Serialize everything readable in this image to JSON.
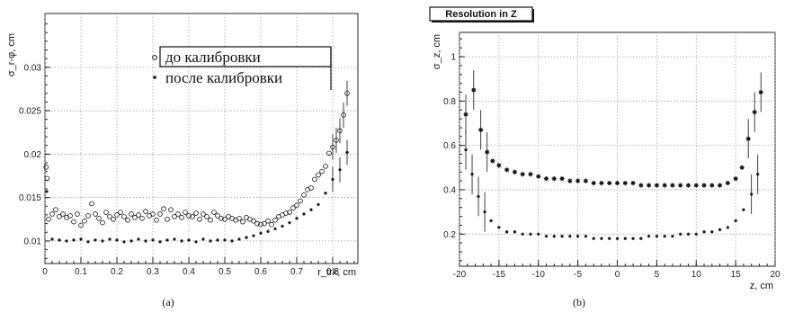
{
  "chart_data": [
    {
      "type": "scatter",
      "title": "",
      "xlabel": "r_trk, cm",
      "ylabel": "σ_r-φ, cm",
      "xlim": [
        0,
        0.87
      ],
      "ylim": [
        0.0074,
        0.0362
      ],
      "xticks": [
        "0",
        "0.1",
        "0.2",
        "0.3",
        "0.4",
        "0.5",
        "0.6",
        "0.7",
        "0.8"
      ],
      "yticks": [
        "0.01",
        "0.015",
        "0.02",
        "0.025",
        "0.03"
      ],
      "grid": true,
      "legend_position": "top-right",
      "caption": "(a)",
      "series": [
        {
          "name": "до калибровки",
          "marker": "circle",
          "x": [
            0.003,
            0.006,
            0.01,
            0.02,
            0.03,
            0.04,
            0.05,
            0.06,
            0.07,
            0.08,
            0.09,
            0.1,
            0.11,
            0.12,
            0.13,
            0.14,
            0.15,
            0.16,
            0.17,
            0.18,
            0.19,
            0.2,
            0.21,
            0.22,
            0.23,
            0.24,
            0.25,
            0.26,
            0.27,
            0.28,
            0.29,
            0.3,
            0.31,
            0.32,
            0.33,
            0.34,
            0.35,
            0.36,
            0.37,
            0.38,
            0.39,
            0.4,
            0.41,
            0.42,
            0.43,
            0.44,
            0.45,
            0.46,
            0.47,
            0.48,
            0.49,
            0.5,
            0.51,
            0.52,
            0.53,
            0.54,
            0.55,
            0.56,
            0.57,
            0.58,
            0.59,
            0.6,
            0.61,
            0.62,
            0.63,
            0.64,
            0.65,
            0.66,
            0.67,
            0.68,
            0.69,
            0.7,
            0.71,
            0.72,
            0.73,
            0.74,
            0.75,
            0.76,
            0.77,
            0.78,
            0.79,
            0.8,
            0.81,
            0.82,
            0.83,
            0.84
          ],
          "y": [
            0.0185,
            0.0172,
            0.0125,
            0.0131,
            0.0136,
            0.0128,
            0.0131,
            0.0127,
            0.0129,
            0.0122,
            0.0131,
            0.0118,
            0.0123,
            0.0129,
            0.0143,
            0.0131,
            0.0126,
            0.0121,
            0.0133,
            0.0128,
            0.0125,
            0.013,
            0.0133,
            0.0128,
            0.0124,
            0.0131,
            0.0127,
            0.013,
            0.0126,
            0.0134,
            0.0129,
            0.0131,
            0.0124,
            0.0131,
            0.0137,
            0.0125,
            0.0136,
            0.0128,
            0.0131,
            0.0127,
            0.0133,
            0.0129,
            0.0128,
            0.0132,
            0.0125,
            0.0131,
            0.0128,
            0.0124,
            0.0133,
            0.0129,
            0.0126,
            0.0125,
            0.0128,
            0.0126,
            0.0124,
            0.0126,
            0.0122,
            0.0127,
            0.0125,
            0.0123,
            0.012,
            0.0119,
            0.012,
            0.0123,
            0.0119,
            0.0124,
            0.0128,
            0.013,
            0.0132,
            0.0133,
            0.0138,
            0.0141,
            0.0146,
            0.0153,
            0.0159,
            0.0161,
            0.0171,
            0.0176,
            0.018,
            0.0186,
            0.0201,
            0.0208,
            0.0216,
            0.0227,
            0.0245,
            0.027
          ]
        },
        {
          "name": "после калибровки",
          "marker": "star",
          "x": [
            0.005,
            0.02,
            0.04,
            0.06,
            0.08,
            0.1,
            0.12,
            0.14,
            0.16,
            0.18,
            0.2,
            0.22,
            0.24,
            0.26,
            0.28,
            0.3,
            0.32,
            0.34,
            0.36,
            0.38,
            0.4,
            0.42,
            0.44,
            0.46,
            0.48,
            0.5,
            0.52,
            0.54,
            0.56,
            0.58,
            0.6,
            0.62,
            0.64,
            0.66,
            0.68,
            0.7,
            0.72,
            0.74,
            0.76,
            0.78,
            0.8,
            0.82,
            0.84
          ],
          "y": [
            0.0157,
            0.0102,
            0.0101,
            0.01,
            0.0101,
            0.0102,
            0.0099,
            0.0101,
            0.01,
            0.0102,
            0.0101,
            0.0099,
            0.01,
            0.0102,
            0.01,
            0.0101,
            0.0099,
            0.0101,
            0.0102,
            0.01,
            0.0101,
            0.0099,
            0.0102,
            0.01,
            0.0101,
            0.0101,
            0.01,
            0.0102,
            0.0104,
            0.0106,
            0.0109,
            0.0111,
            0.0114,
            0.0117,
            0.0121,
            0.0126,
            0.0131,
            0.0136,
            0.0142,
            0.0155,
            0.0171,
            0.0182,
            0.0202
          ]
        }
      ]
    },
    {
      "type": "scatter",
      "title": "Resolution in Z",
      "xlabel": "z, cm",
      "ylabel": "σ_z, cm",
      "xlim": [
        -20,
        20
      ],
      "ylim": [
        0.055,
        1.11
      ],
      "xticks": [
        "-20",
        "-15",
        "-10",
        "-5",
        "0",
        "5",
        "10",
        "15",
        "20"
      ],
      "yticks": [
        "0.2",
        "0.4",
        "0.6",
        "0.8",
        "1"
      ],
      "grid": true,
      "caption": "(b)",
      "series": [
        {
          "marker": "star",
          "x": [
            -19.2,
            -18.2,
            -17.3,
            -16.5,
            -15.8,
            -15,
            -14,
            -13,
            -12,
            -11,
            -10,
            -9,
            -8,
            -7,
            -6,
            -5,
            -4,
            -3,
            -2,
            -1,
            0,
            1,
            2,
            3,
            4,
            5,
            6,
            7,
            8,
            9,
            10,
            11,
            12,
            13,
            14,
            15,
            15.8,
            16.6,
            17.4,
            18.2
          ],
          "y": [
            0.74,
            0.85,
            0.67,
            0.57,
            0.53,
            0.51,
            0.49,
            0.48,
            0.47,
            0.47,
            0.46,
            0.45,
            0.45,
            0.45,
            0.44,
            0.44,
            0.44,
            0.43,
            0.43,
            0.43,
            0.43,
            0.43,
            0.43,
            0.42,
            0.42,
            0.42,
            0.42,
            0.42,
            0.42,
            0.42,
            0.42,
            0.42,
            0.42,
            0.42,
            0.43,
            0.45,
            0.5,
            0.63,
            0.75,
            0.84
          ]
        },
        {
          "marker": "star",
          "x": [
            -19.2,
            -18.4,
            -17.6,
            -16.8,
            -16,
            -15,
            -14,
            -13,
            -12,
            -11,
            -10,
            -9,
            -8,
            -7,
            -6,
            -5,
            -4,
            -3,
            -2,
            -1,
            0,
            1,
            2,
            3,
            4,
            5,
            6,
            7,
            8,
            9,
            10,
            11,
            12,
            13,
            14,
            15,
            16,
            17,
            17.8
          ],
          "y": [
            0.58,
            0.47,
            0.37,
            0.3,
            0.26,
            0.23,
            0.21,
            0.21,
            0.2,
            0.2,
            0.2,
            0.19,
            0.19,
            0.19,
            0.19,
            0.19,
            0.19,
            0.18,
            0.18,
            0.18,
            0.18,
            0.18,
            0.18,
            0.18,
            0.19,
            0.19,
            0.19,
            0.19,
            0.2,
            0.2,
            0.2,
            0.21,
            0.21,
            0.22,
            0.23,
            0.26,
            0.31,
            0.38,
            0.47
          ]
        }
      ]
    }
  ]
}
